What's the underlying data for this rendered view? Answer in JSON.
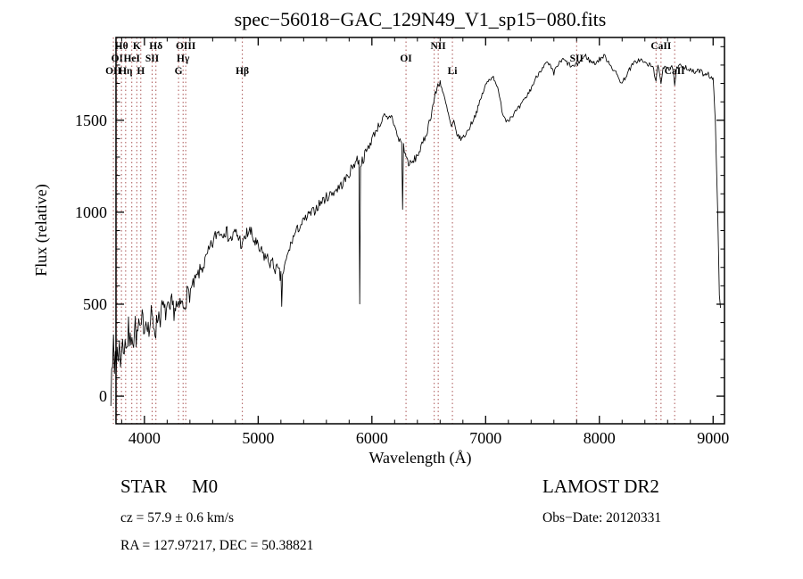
{
  "chart_data": {
    "type": "line",
    "title": "spec−56018−GAC_129N49_V1_sp15−080.fits",
    "xlabel": "Wavelength (Å)",
    "ylabel": "Flux (relative)",
    "xlim": [
      3750,
      9100
    ],
    "ylim": [
      -150,
      1950
    ],
    "xticks": [
      4000,
      5000,
      6000,
      7000,
      8000,
      9000
    ],
    "yticks": [
      0,
      500,
      1000,
      1500
    ],
    "xtick_minor_step": 200,
    "ytick_minor_step": 100,
    "grid": false,
    "legend": "none",
    "trace_color": "#000000",
    "spectral_line_color": "#aa5555",
    "spectral_lines": [
      {
        "label": "OII",
        "wavelength": 3727,
        "row": 2
      },
      {
        "label": "OI",
        "wavelength": 3760,
        "row": 1
      },
      {
        "label": "Hθ",
        "wavelength": 3798,
        "row": 0
      },
      {
        "label": "Hη",
        "wavelength": 3835,
        "row": 2
      },
      {
        "label": "HeI",
        "wavelength": 3889,
        "row": 1
      },
      {
        "label": "K",
        "wavelength": 3933,
        "row": 0
      },
      {
        "label": "H",
        "wavelength": 3968,
        "row": 2
      },
      {
        "label": "SII",
        "wavelength": 4068,
        "row": 1
      },
      {
        "label": "Hδ",
        "wavelength": 4101,
        "row": 0
      },
      {
        "label": "G",
        "wavelength": 4300,
        "row": 2
      },
      {
        "label": "Hγ",
        "wavelength": 4340,
        "row": 1
      },
      {
        "label": "OIII",
        "wavelength": 4363,
        "row": 0
      },
      {
        "label": "Hβ",
        "wavelength": 4861,
        "row": 2
      },
      {
        "label": "OI",
        "wavelength": 6300,
        "row": 1
      },
      {
        "label": "",
        "wavelength": 6548,
        "row": 0
      },
      {
        "label": "NII",
        "wavelength": 6583,
        "row": 0
      },
      {
        "label": "Li",
        "wavelength": 6708,
        "row": 2
      },
      {
        "label": "SII",
        "wavelength": 7800,
        "row": 1
      },
      {
        "label": "",
        "wavelength": 8498,
        "row": 0
      },
      {
        "label": "CaII",
        "wavelength": 8542,
        "row": 0
      },
      {
        "label": "CaII",
        "wavelength": 8662,
        "row": 2
      }
    ],
    "noise_seed": 7,
    "noise_profile": [
      {
        "to": 3950,
        "amp": 85
      },
      {
        "to": 4400,
        "amp": 60
      },
      {
        "to": 5200,
        "amp": 40
      },
      {
        "to": 6000,
        "amp": 28
      },
      {
        "to": 6600,
        "amp": 22
      },
      {
        "to": 9100,
        "amp": 14
      }
    ],
    "spectrum": [
      [
        3705,
        30
      ],
      [
        3712,
        220
      ],
      [
        3720,
        80
      ],
      [
        3728,
        300
      ],
      [
        3736,
        120
      ],
      [
        3744,
        260
      ],
      [
        3752,
        140
      ],
      [
        3760,
        310
      ],
      [
        3770,
        180
      ],
      [
        3780,
        260
      ],
      [
        3790,
        200
      ],
      [
        3800,
        300
      ],
      [
        3815,
        230
      ],
      [
        3830,
        330
      ],
      [
        3845,
        260
      ],
      [
        3860,
        350
      ],
      [
        3875,
        280
      ],
      [
        3890,
        380
      ],
      [
        3905,
        300
      ],
      [
        3920,
        390
      ],
      [
        3935,
        290
      ],
      [
        3950,
        400
      ],
      [
        3965,
        330
      ],
      [
        3980,
        420
      ],
      [
        4000,
        380
      ],
      [
        4020,
        430
      ],
      [
        4040,
        340
      ],
      [
        4060,
        440
      ],
      [
        4080,
        390
      ],
      [
        4100,
        360
      ],
      [
        4120,
        450
      ],
      [
        4140,
        430
      ],
      [
        4160,
        490
      ],
      [
        4180,
        450
      ],
      [
        4200,
        480
      ],
      [
        4220,
        440
      ],
      [
        4240,
        500
      ],
      [
        4260,
        470
      ],
      [
        4280,
        490
      ],
      [
        4300,
        460
      ],
      [
        4320,
        510
      ],
      [
        4340,
        480
      ],
      [
        4360,
        530
      ],
      [
        4390,
        560
      ],
      [
        4420,
        590
      ],
      [
        4450,
        630
      ],
      [
        4480,
        670
      ],
      [
        4510,
        700
      ],
      [
        4540,
        740
      ],
      [
        4570,
        790
      ],
      [
        4600,
        830
      ],
      [
        4630,
        880
      ],
      [
        4660,
        900
      ],
      [
        4680,
        880
      ],
      [
        4700,
        910
      ],
      [
        4720,
        890
      ],
      [
        4740,
        870
      ],
      [
        4760,
        850
      ],
      [
        4780,
        870
      ],
      [
        4800,
        890
      ],
      [
        4820,
        870
      ],
      [
        4840,
        850
      ],
      [
        4861,
        810
      ],
      [
        4880,
        850
      ],
      [
        4900,
        880
      ],
      [
        4920,
        900
      ],
      [
        4940,
        880
      ],
      [
        4960,
        850
      ],
      [
        4980,
        830
      ],
      [
        5000,
        800
      ],
      [
        5030,
        780
      ],
      [
        5060,
        760
      ],
      [
        5090,
        740
      ],
      [
        5120,
        720
      ],
      [
        5150,
        700
      ],
      [
        5180,
        670
      ],
      [
        5200,
        640
      ],
      [
        5207,
        500
      ],
      [
        5215,
        660
      ],
      [
        5240,
        720
      ],
      [
        5270,
        790
      ],
      [
        5300,
        850
      ],
      [
        5330,
        890
      ],
      [
        5360,
        920
      ],
      [
        5400,
        950
      ],
      [
        5440,
        980
      ],
      [
        5480,
        1000
      ],
      [
        5520,
        1030
      ],
      [
        5560,
        1060
      ],
      [
        5600,
        1080
      ],
      [
        5640,
        1100
      ],
      [
        5680,
        1120
      ],
      [
        5720,
        1140
      ],
      [
        5760,
        1170
      ],
      [
        5800,
        1210
      ],
      [
        5840,
        1260
      ],
      [
        5870,
        1290
      ],
      [
        5886,
        1270
      ],
      [
        5893,
        520
      ],
      [
        5900,
        1260
      ],
      [
        5930,
        1300
      ],
      [
        5960,
        1340
      ],
      [
        6000,
        1400
      ],
      [
        6040,
        1450
      ],
      [
        6080,
        1490
      ],
      [
        6110,
        1520
      ],
      [
        6140,
        1500
      ],
      [
        6170,
        1530
      ],
      [
        6200,
        1470
      ],
      [
        6230,
        1400
      ],
      [
        6262,
        1380
      ],
      [
        6270,
        1020
      ],
      [
        6278,
        1360
      ],
      [
        6300,
        1300
      ],
      [
        6330,
        1260
      ],
      [
        6360,
        1270
      ],
      [
        6400,
        1310
      ],
      [
        6440,
        1360
      ],
      [
        6480,
        1430
      ],
      [
        6520,
        1530
      ],
      [
        6550,
        1620
      ],
      [
        6580,
        1690
      ],
      [
        6600,
        1710
      ],
      [
        6620,
        1660
      ],
      [
        6650,
        1590
      ],
      [
        6680,
        1510
      ],
      [
        6700,
        1460
      ],
      [
        6720,
        1490
      ],
      [
        6740,
        1440
      ],
      [
        6760,
        1410
      ],
      [
        6790,
        1400
      ],
      [
        6820,
        1420
      ],
      [
        6850,
        1450
      ],
      [
        6880,
        1490
      ],
      [
        6910,
        1530
      ],
      [
        6940,
        1580
      ],
      [
        6970,
        1640
      ],
      [
        7000,
        1690
      ],
      [
        7030,
        1720
      ],
      [
        7060,
        1740
      ],
      [
        7090,
        1710
      ],
      [
        7120,
        1630
      ],
      [
        7150,
        1540
      ],
      [
        7180,
        1500
      ],
      [
        7210,
        1510
      ],
      [
        7240,
        1530
      ],
      [
        7270,
        1550
      ],
      [
        7300,
        1570
      ],
      [
        7340,
        1610
      ],
      [
        7380,
        1650
      ],
      [
        7420,
        1700
      ],
      [
        7460,
        1750
      ],
      [
        7500,
        1790
      ],
      [
        7540,
        1810
      ],
      [
        7570,
        1790
      ],
      [
        7600,
        1750
      ],
      [
        7620,
        1790
      ],
      [
        7650,
        1810
      ],
      [
        7680,
        1830
      ],
      [
        7720,
        1810
      ],
      [
        7760,
        1790
      ],
      [
        7800,
        1800
      ],
      [
        7840,
        1830
      ],
      [
        7880,
        1850
      ],
      [
        7920,
        1820
      ],
      [
        7960,
        1810
      ],
      [
        8000,
        1830
      ],
      [
        8040,
        1850
      ],
      [
        8080,
        1820
      ],
      [
        8120,
        1780
      ],
      [
        8160,
        1740
      ],
      [
        8200,
        1700
      ],
      [
        8240,
        1750
      ],
      [
        8280,
        1790
      ],
      [
        8320,
        1820
      ],
      [
        8360,
        1830
      ],
      [
        8400,
        1810
      ],
      [
        8440,
        1800
      ],
      [
        8470,
        1790
      ],
      [
        8498,
        1720
      ],
      [
        8515,
        1790
      ],
      [
        8542,
        1700
      ],
      [
        8560,
        1790
      ],
      [
        8590,
        1800
      ],
      [
        8620,
        1770
      ],
      [
        8645,
        1790
      ],
      [
        8662,
        1680
      ],
      [
        8680,
        1780
      ],
      [
        8720,
        1800
      ],
      [
        8760,
        1790
      ],
      [
        8800,
        1770
      ],
      [
        8840,
        1760
      ],
      [
        8880,
        1770
      ],
      [
        8920,
        1750
      ],
      [
        8950,
        1760
      ],
      [
        8980,
        1730
      ],
      [
        9000,
        1720
      ],
      [
        9020,
        1500
      ],
      [
        9040,
        1000
      ],
      [
        9055,
        550
      ],
      [
        9065,
        480
      ]
    ]
  },
  "footer": {
    "object_type": "STAR",
    "subclass": "M0",
    "survey": "LAMOST DR2",
    "cz": "cz = 57.9 ± 0.6 km/s",
    "obs_date": "Obs−Date: 20120331",
    "coords": "RA = 127.97217, DEC =  50.38821"
  }
}
